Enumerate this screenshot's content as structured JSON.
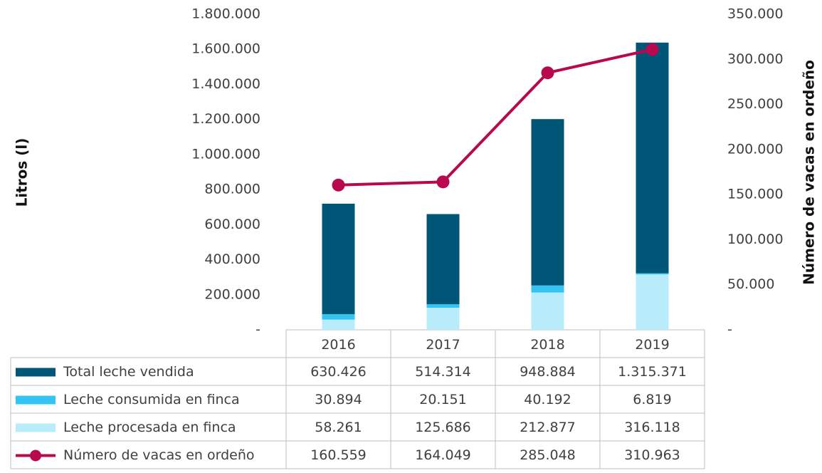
{
  "chart_data": {
    "type": "bar",
    "categories": [
      "2016",
      "2017",
      "2018",
      "2019"
    ],
    "series": [
      {
        "name": "Total leche vendida",
        "color": "#005677",
        "values": [
          630426,
          514314,
          948884,
          1315371
        ],
        "value_labels": [
          "630.426",
          "514.314",
          "948.884",
          "1.315.371"
        ]
      },
      {
        "name": "Leche consumida en finca",
        "color": "#33c4f2",
        "values": [
          30894,
          20151,
          40192,
          6819
        ],
        "value_labels": [
          "30.894",
          "20.151",
          "40.192",
          "6.819"
        ]
      },
      {
        "name": "Leche procesada en finca",
        "color": "#b9ecfb",
        "values": [
          58261,
          125686,
          212877,
          316118
        ],
        "value_labels": [
          "58.261",
          "125.686",
          "212.877",
          "316.118"
        ]
      },
      {
        "name": "Número de vacas en ordeño",
        "color": "#b8094f",
        "type": "line",
        "axis": "y2",
        "values": [
          160559,
          164049,
          285048,
          310963
        ],
        "value_labels": [
          "160.559",
          "164.049",
          "285.048",
          "310.963"
        ]
      }
    ],
    "y_label": "Litros (l)",
    "y2_label": "Número de vacas en ordeño",
    "ylim": [
      0,
      1800000
    ],
    "yticks": [
      {
        "value": 0,
        "label": "-"
      },
      {
        "value": 200000,
        "label": "200.000"
      },
      {
        "value": 400000,
        "label": "400.000"
      },
      {
        "value": 600000,
        "label": "600.000"
      },
      {
        "value": 800000,
        "label": "800.000"
      },
      {
        "value": 1000000,
        "label": "1.000.000"
      },
      {
        "value": 1200000,
        "label": "1.200.000"
      },
      {
        "value": 1400000,
        "label": "1.400.000"
      },
      {
        "value": 1600000,
        "label": "1.600.000"
      },
      {
        "value": 1800000,
        "label": "1.800.000"
      }
    ],
    "y2lim": [
      0,
      350000
    ],
    "y2ticks": [
      {
        "value": 0,
        "label": "-"
      },
      {
        "value": 50000,
        "label": "50.000"
      },
      {
        "value": 100000,
        "label": "100.000"
      },
      {
        "value": 150000,
        "label": "150.000"
      },
      {
        "value": 200000,
        "label": "200.000"
      },
      {
        "value": 250000,
        "label": "250.000"
      },
      {
        "value": 300000,
        "label": "300.000"
      },
      {
        "value": 350000,
        "label": "350.000"
      }
    ],
    "grid": false
  }
}
